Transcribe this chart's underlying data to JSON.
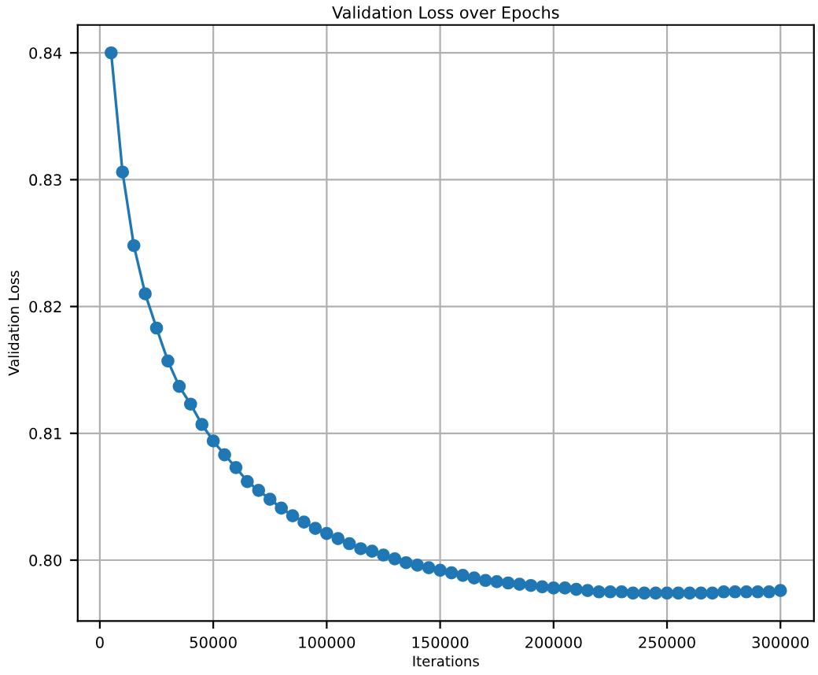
{
  "chart_data": {
    "type": "line",
    "title": "Validation Loss over Epochs",
    "xlabel": "Iterations",
    "ylabel": "Validation Loss",
    "x": [
      5000,
      10000,
      15000,
      20000,
      25000,
      30000,
      35000,
      40000,
      45000,
      50000,
      55000,
      60000,
      65000,
      70000,
      75000,
      80000,
      85000,
      90000,
      95000,
      100000,
      105000,
      110000,
      115000,
      120000,
      125000,
      130000,
      135000,
      140000,
      145000,
      150000,
      155000,
      160000,
      165000,
      170000,
      175000,
      180000,
      185000,
      190000,
      195000,
      200000,
      205000,
      210000,
      215000,
      220000,
      225000,
      230000,
      235000,
      240000,
      245000,
      250000,
      255000,
      260000,
      265000,
      270000,
      275000,
      280000,
      285000,
      290000,
      295000,
      300000
    ],
    "series": [
      {
        "color": "#1f77b4",
        "values": [
          0.84,
          0.8306,
          0.8248,
          0.821,
          0.8183,
          0.8157,
          0.8137,
          0.8123,
          0.8107,
          0.8094,
          0.8083,
          0.8073,
          0.8062,
          0.8055,
          0.8048,
          0.8041,
          0.8035,
          0.803,
          0.8025,
          0.8021,
          0.8017,
          0.8013,
          0.8009,
          0.8007,
          0.8004,
          0.8001,
          0.7998,
          0.7996,
          0.7994,
          0.7992,
          0.799,
          0.7988,
          0.7986,
          0.7984,
          0.7983,
          0.7982,
          0.7981,
          0.798,
          0.7979,
          0.7978,
          0.7978,
          0.7977,
          0.7976,
          0.7975,
          0.7975,
          0.7975,
          0.7974,
          0.7974,
          0.7974,
          0.7974,
          0.7974,
          0.7974,
          0.7974,
          0.7974,
          0.7975,
          0.7975,
          0.7975,
          0.7975,
          0.7975,
          0.7976
        ]
      }
    ],
    "xlim": [
      -9750,
      314750
    ],
    "ylim": [
      0.7952,
      0.8422
    ],
    "xticks": [
      0,
      50000,
      100000,
      150000,
      200000,
      250000,
      300000
    ],
    "yticks": [
      {
        "value": 0.8,
        "label": "0.80"
      },
      0.81,
      0.82,
      0.83,
      0.84
    ],
    "grid": true,
    "marker": "circle",
    "line_style": "solid"
  }
}
